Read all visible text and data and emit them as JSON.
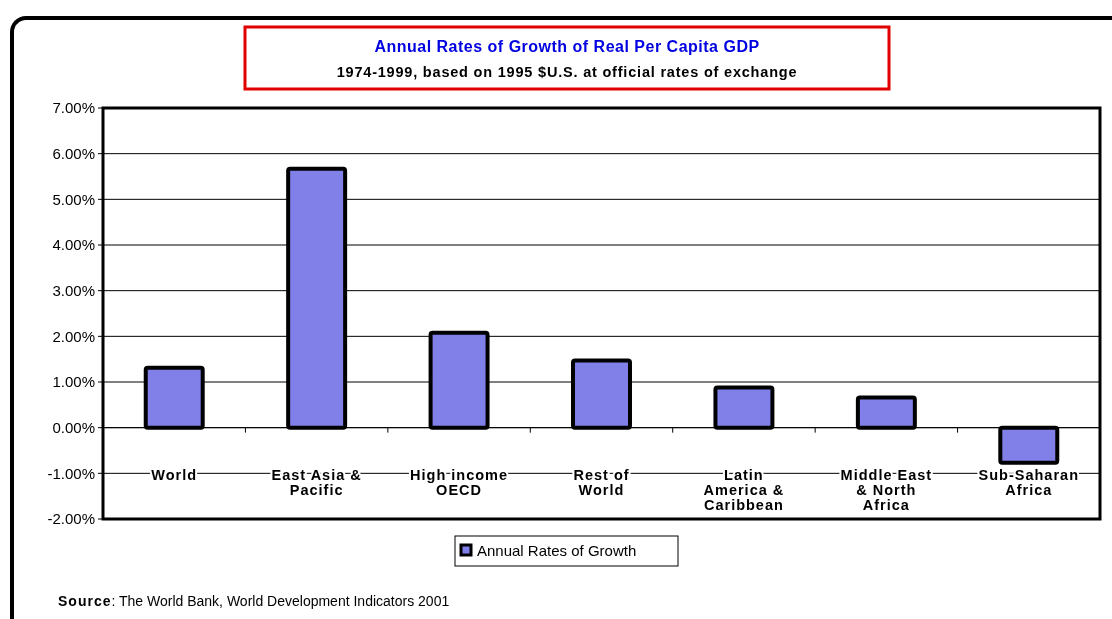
{
  "chart_data": {
    "type": "bar",
    "title": "Annual Rates of Growth of Real Per Capita GDP",
    "subtitle": "1974-1999, based on 1995 $U.S. at official rates of exchange",
    "categories": [
      "World",
      "East Asia & Pacific",
      "High income OECD",
      "Rest of World",
      "Latin America & Caribbean",
      "Middle East & North Africa",
      "Sub-Saharan Africa"
    ],
    "series": [
      {
        "name": "Annual Rates of Growth",
        "color": "#8080e8",
        "values": [
          1.31,
          5.67,
          2.08,
          1.47,
          0.88,
          0.66,
          -0.77
        ]
      }
    ],
    "ylim": [
      -2,
      7
    ],
    "yticks": [
      {
        "value": -2,
        "label": "-2.00%"
      },
      {
        "value": -1,
        "label": "-1.00%"
      },
      {
        "value": 0,
        "label": "0.00%"
      },
      {
        "value": 1,
        "label": "1.00%"
      },
      {
        "value": 2,
        "label": "2.00%"
      },
      {
        "value": 3,
        "label": "3.00%"
      },
      {
        "value": 4,
        "label": "4.00%"
      },
      {
        "value": 5,
        "label": "5.00%"
      },
      {
        "value": 6,
        "label": "6.00%"
      },
      {
        "value": 7,
        "label": "7.00%"
      }
    ],
    "grid": "y",
    "legend": "bottom",
    "annotations": [
      "Source: The World Bank, World Development Indicators 2001"
    ]
  }
}
